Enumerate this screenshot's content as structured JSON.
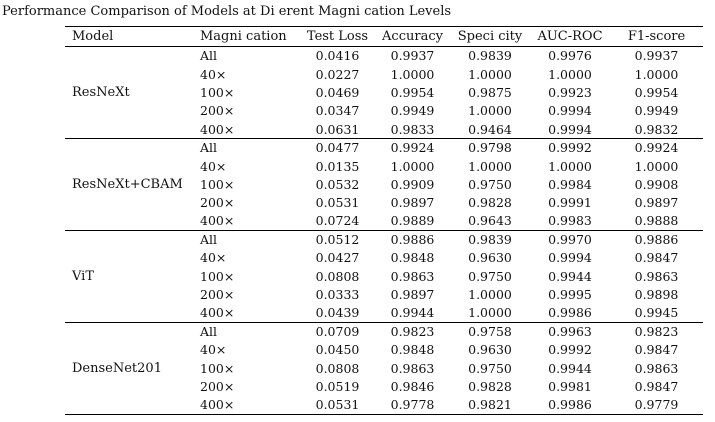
{
  "title": "Performance Comparison of Models at Di erent Magni cation Levels",
  "table": {
    "columns": [
      "Model",
      "Magni cation",
      "Test Loss",
      "Accuracy",
      "Speci city",
      "AUC-ROC",
      "F1-score"
    ],
    "groups": [
      {
        "model": "ResNeXt",
        "rows": [
          [
            "All",
            "0.0416",
            "0.9937",
            "0.9839",
            "0.9976",
            "0.9937"
          ],
          [
            "40×",
            "0.0227",
            "1.0000",
            "1.0000",
            "1.0000",
            "1.0000"
          ],
          [
            "100×",
            "0.0469",
            "0.9954",
            "0.9875",
            "0.9923",
            "0.9954"
          ],
          [
            "200×",
            "0.0347",
            "0.9949",
            "1.0000",
            "0.9994",
            "0.9949"
          ],
          [
            "400×",
            "0.0631",
            "0.9833",
            "0.9464",
            "0.9994",
            "0.9832"
          ]
        ]
      },
      {
        "model": "ResNeXt+CBAM",
        "rows": [
          [
            "All",
            "0.0477",
            "0.9924",
            "0.9798",
            "0.9992",
            "0.9924"
          ],
          [
            "40×",
            "0.0135",
            "1.0000",
            "1.0000",
            "1.0000",
            "1.0000"
          ],
          [
            "100×",
            "0.0532",
            "0.9909",
            "0.9750",
            "0.9984",
            "0.9908"
          ],
          [
            "200×",
            "0.0531",
            "0.9897",
            "0.9828",
            "0.9991",
            "0.9897"
          ],
          [
            "400×",
            "0.0724",
            "0.9889",
            "0.9643",
            "0.9983",
            "0.9888"
          ]
        ]
      },
      {
        "model": "ViT",
        "rows": [
          [
            "All",
            "0.0512",
            "0.9886",
            "0.9839",
            "0.9970",
            "0.9886"
          ],
          [
            "40×",
            "0.0427",
            "0.9848",
            "0.9630",
            "0.9994",
            "0.9847"
          ],
          [
            "100×",
            "0.0808",
            "0.9863",
            "0.9750",
            "0.9944",
            "0.9863"
          ],
          [
            "200×",
            "0.0333",
            "0.9897",
            "1.0000",
            "0.9995",
            "0.9898"
          ],
          [
            "400×",
            "0.0439",
            "0.9944",
            "1.0000",
            "0.9986",
            "0.9945"
          ]
        ]
      },
      {
        "model": "DenseNet201",
        "rows": [
          [
            "All",
            "0.0709",
            "0.9823",
            "0.9758",
            "0.9963",
            "0.9823"
          ],
          [
            "40×",
            "0.0450",
            "0.9848",
            "0.9630",
            "0.9992",
            "0.9847"
          ],
          [
            "100×",
            "0.0808",
            "0.9863",
            "0.9750",
            "0.9944",
            "0.9863"
          ],
          [
            "200×",
            "0.0519",
            "0.9846",
            "0.9828",
            "0.9981",
            "0.9847"
          ],
          [
            "400×",
            "0.0531",
            "0.9778",
            "0.9821",
            "0.9986",
            "0.9779"
          ]
        ]
      }
    ]
  }
}
